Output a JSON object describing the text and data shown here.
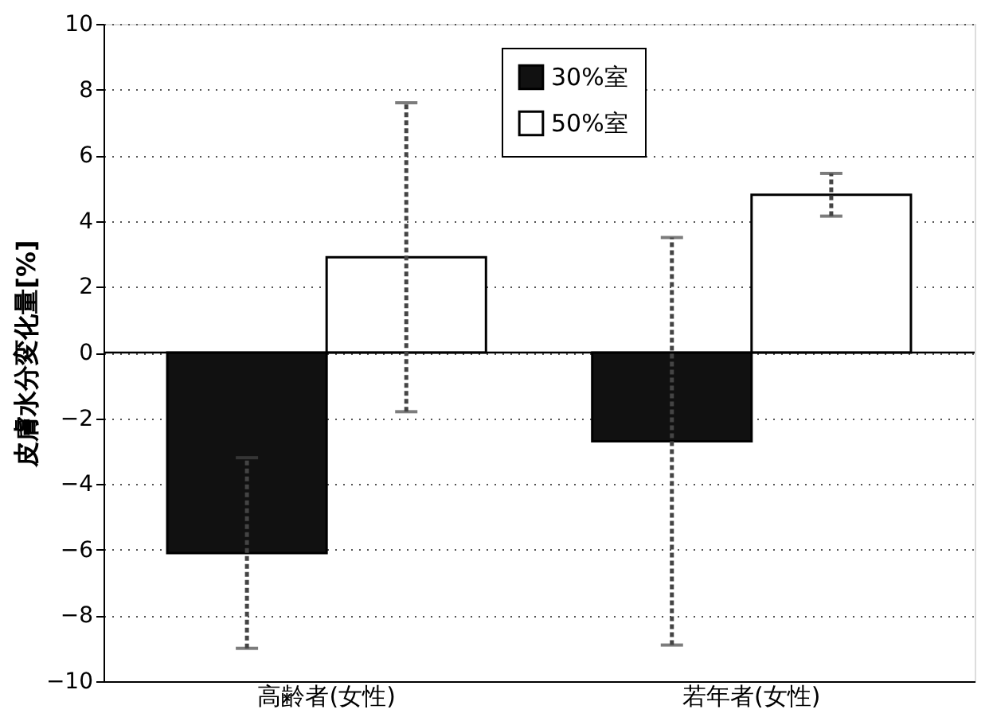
{
  "chart_data": {
    "type": "bar",
    "ylabel": "皮膚水分変化量[%]",
    "categories": [
      "高齢者(女性)",
      "若年者(女性)"
    ],
    "series": [
      {
        "name": "30%室",
        "color": "#111111",
        "values": [
          -6.1,
          -2.7
        ],
        "errors": [
          2.9,
          6.2
        ]
      },
      {
        "name": "50%室",
        "color": "#ffffff",
        "values": [
          2.9,
          4.8
        ],
        "errors": [
          4.7,
          0.65
        ]
      }
    ],
    "ylim": [
      -10,
      10
    ],
    "yticks": [
      -10,
      -8,
      -6,
      -4,
      -2,
      0,
      2,
      4,
      6,
      8,
      10
    ],
    "grid": "y",
    "legend": "top right",
    "ref_lines": [
      {
        "axis": "y",
        "value": 0,
        "color": "#000000"
      }
    ]
  }
}
